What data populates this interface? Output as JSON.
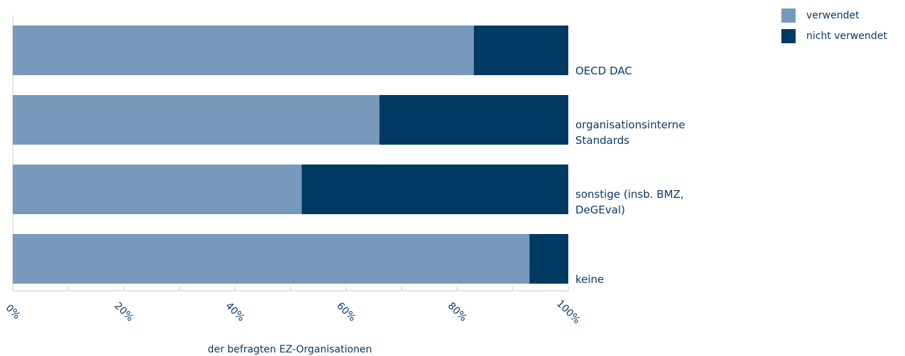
{
  "chart_data": {
    "type": "stacked_barh",
    "categories": [
      "OECD DAC",
      "organisationsinterne Standards",
      "sonstige (insb. BMZ, DeGEval)",
      "keine"
    ],
    "series": [
      {
        "name": "verwendet",
        "color": "#7799bb",
        "values": [
          83,
          66,
          52,
          93
        ]
      },
      {
        "name": "nicht verwendet",
        "color": "#003a63",
        "values": [
          17,
          34,
          48,
          7
        ]
      }
    ],
    "xlabel": "der befragten EZ-Organisationen",
    "xlim": [
      0,
      100
    ],
    "xticks": [
      {
        "value": 0,
        "label": "0%"
      },
      {
        "value": 20,
        "label": "20%"
      },
      {
        "value": 40,
        "label": "40%"
      },
      {
        "value": 60,
        "label": "60%"
      },
      {
        "value": 80,
        "label": "80%"
      },
      {
        "value": 100,
        "label": "100%"
      }
    ],
    "minor_xticks": [
      10,
      30,
      50,
      70,
      90
    ],
    "legend": "upper right"
  }
}
